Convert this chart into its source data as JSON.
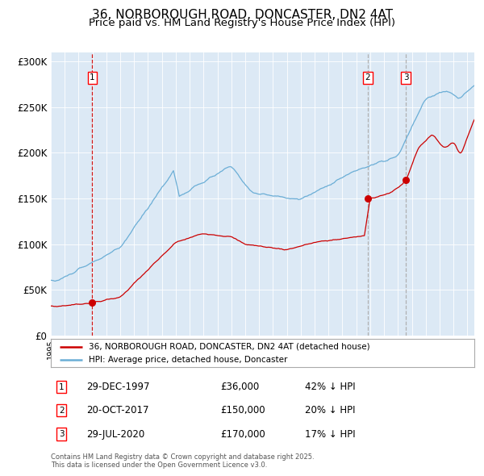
{
  "title": "36, NORBOROUGH ROAD, DONCASTER, DN2 4AT",
  "subtitle": "Price paid vs. HM Land Registry's House Price Index (HPI)",
  "title_fontsize": 11,
  "subtitle_fontsize": 9.5,
  "background_color": "#dce9f5",
  "plot_bg_color": "#dce9f5",
  "fig_bg_color": "#ffffff",
  "ylim": [
    0,
    310000
  ],
  "yticks": [
    0,
    50000,
    100000,
    150000,
    200000,
    250000,
    300000
  ],
  "ytick_labels": [
    "£0",
    "£50K",
    "£100K",
    "£150K",
    "£200K",
    "£250K",
    "£300K"
  ],
  "hpi_color": "#6baed6",
  "price_color": "#cc0000",
  "sale_marker_color": "#cc0000",
  "vline1_color": "#cc0000",
  "vline2_color": "#aaaaaa",
  "vline3_color": "#aaaaaa",
  "sale1_date": 1997.99,
  "sale1_price": 36000,
  "sale2_date": 2017.81,
  "sale2_price": 150000,
  "sale3_date": 2020.58,
  "sale3_price": 170000,
  "legend_label_red": "36, NORBOROUGH ROAD, DONCASTER, DN2 4AT (detached house)",
  "legend_label_blue": "HPI: Average price, detached house, Doncaster",
  "table_entries": [
    {
      "num": "1",
      "date": "29-DEC-1997",
      "price": "£36,000",
      "pct": "42% ↓ HPI"
    },
    {
      "num": "2",
      "date": "20-OCT-2017",
      "price": "£150,000",
      "pct": "20% ↓ HPI"
    },
    {
      "num": "3",
      "date": "29-JUL-2020",
      "price": "£170,000",
      "pct": "17% ↓ HPI"
    }
  ],
  "footnote": "Contains HM Land Registry data © Crown copyright and database right 2025.\nThis data is licensed under the Open Government Licence v3.0.",
  "xmin": 1995.0,
  "xmax": 2025.5
}
